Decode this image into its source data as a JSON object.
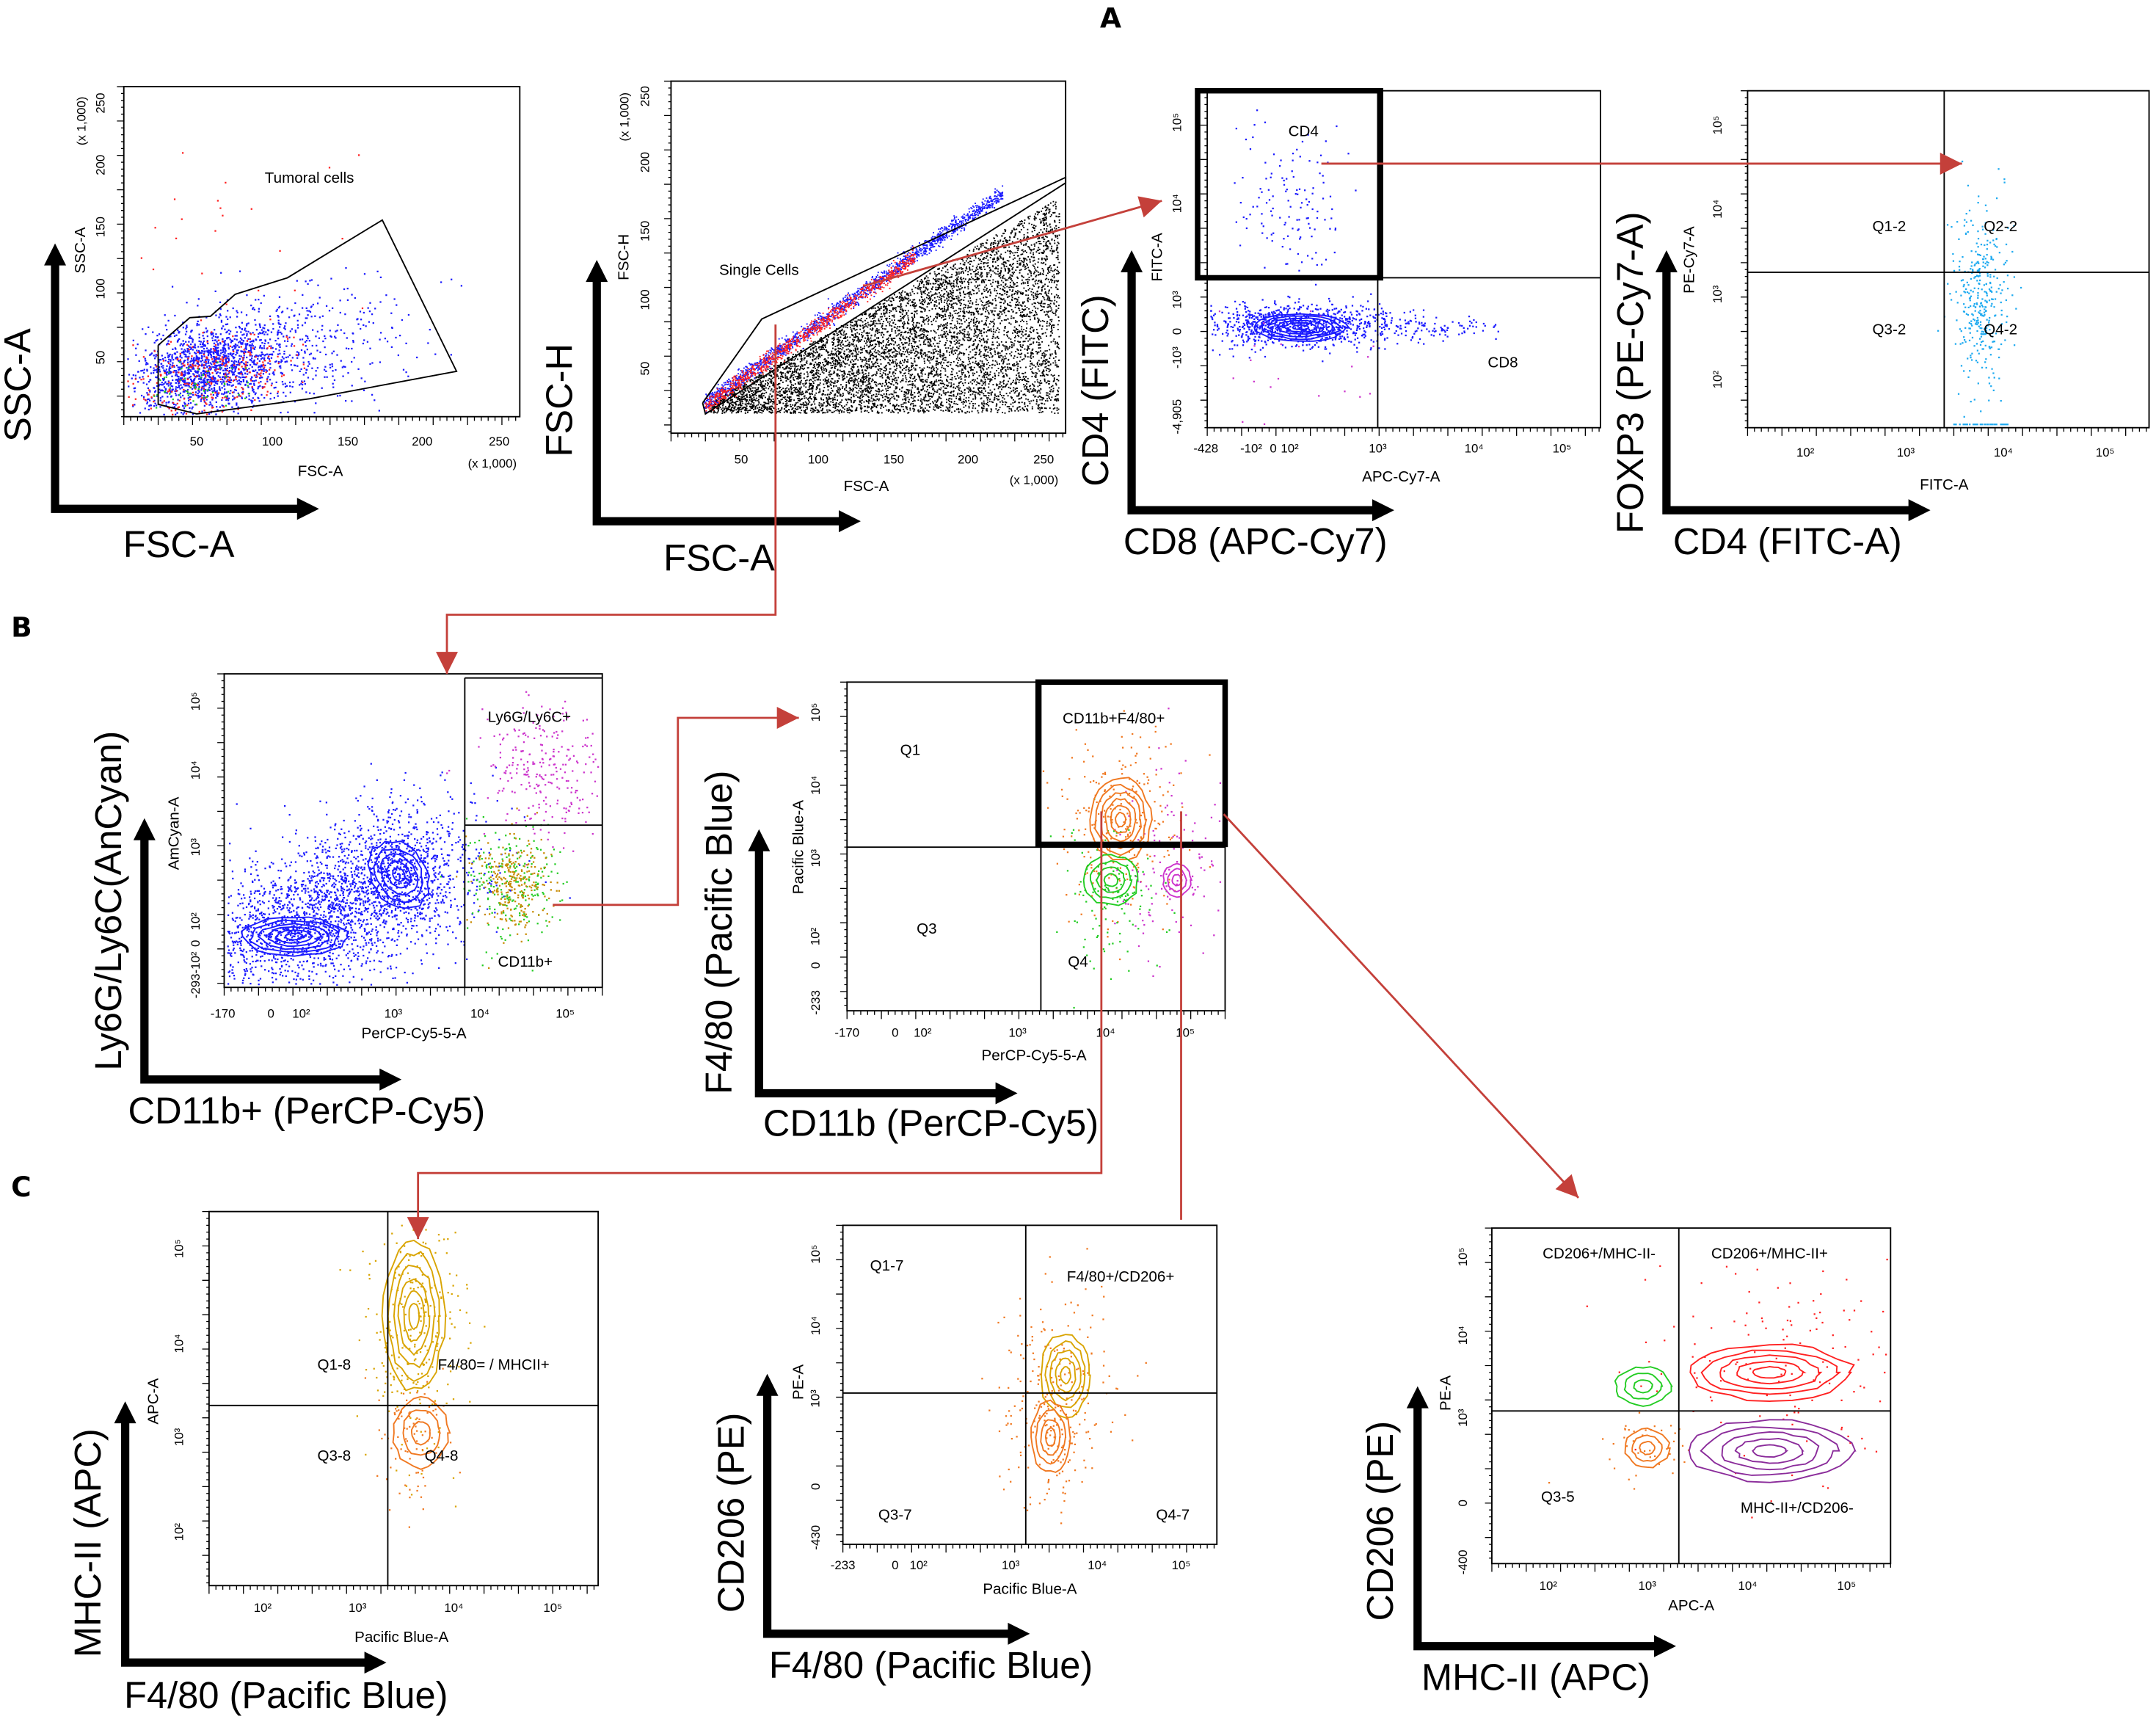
{
  "panels": {
    "a": "A",
    "b": "B",
    "c": "C"
  },
  "colors": {
    "connector": "#c4403a",
    "blue": "#1a1aff",
    "red": "#ff2020",
    "green": "#22cc22",
    "magenta": "#cc33cc",
    "cyan": "#1eaaf0",
    "orange": "#f07820",
    "gold": "#d9a400",
    "purple": "#8a2b9a",
    "black": "#000000"
  },
  "plots": [
    {
      "id": "tumoral-cells",
      "axis_x": "FSC-A",
      "axis_y": "SSC-A",
      "param_x": "FSC-A",
      "param_y": "SSC-A",
      "mult_x": "(x 1,000)",
      "mult_y": "(x 1,000)",
      "x_ticks": [
        "50",
        "100",
        "150",
        "200",
        "250"
      ],
      "y_ticks": [
        "50",
        "100",
        "150",
        "200",
        "250"
      ],
      "populations": [
        "Tumoral cells"
      ]
    },
    {
      "id": "single-cells",
      "axis_x": "FSC-A",
      "axis_y": "FSC-H",
      "param_x": "FSC-A",
      "param_y": "FSC-H",
      "mult_x": "(x 1,000)",
      "mult_y": "(x 1,000)",
      "x_ticks": [
        "50",
        "100",
        "150",
        "200",
        "250"
      ],
      "y_ticks": [
        "50",
        "100",
        "150",
        "200",
        "250"
      ],
      "populations": [
        "Single Cells"
      ]
    },
    {
      "id": "cd4-cd8",
      "axis_x": "CD8 (APC-Cy7)",
      "axis_y": "CD4 (FITC)",
      "param_x": "APC-Cy7-A",
      "param_y": "FITC-A",
      "x_ticks": [
        "-428",
        "-10²",
        "0",
        "10²",
        "10³",
        "10⁴",
        "10⁵"
      ],
      "y_ticks": [
        "10⁵",
        "10⁴",
        "10³",
        "0",
        "-10³",
        "-4,905"
      ],
      "populations": [
        "CD4",
        "CD8"
      ]
    },
    {
      "id": "cd4-foxp3",
      "axis_x": "CD4 (FITC-A)",
      "axis_y": "FOXP3 (PE-Cy7-A)",
      "param_x": "FITC-A",
      "param_y": "PE-Cy7-A",
      "x_ticks": [
        "10²",
        "10³",
        "10⁴",
        "10⁵"
      ],
      "y_ticks": [
        "10⁵",
        "10⁴",
        "10³",
        "10²"
      ],
      "populations": [
        "Q1-2",
        "Q2-2",
        "Q3-2",
        "Q4-2"
      ]
    },
    {
      "id": "ly6g-cd11b",
      "axis_x": "CD11b+ (PerCP-Cy5)",
      "axis_y": "Ly6G/Ly6C(AnCyan)",
      "param_x": "PerCP-Cy5-5-A",
      "param_y": "AmCyan-A",
      "x_ticks": [
        "-170",
        "0",
        "10²",
        "10³",
        "10⁴",
        "10⁵"
      ],
      "y_ticks": [
        "10⁵",
        "10⁴",
        "10³",
        "10²",
        "0",
        "-10²",
        "-293"
      ],
      "populations": [
        "Ly6G/Ly6C+",
        "CD11b+"
      ]
    },
    {
      "id": "f480-cd11b",
      "axis_x": "CD11b (PerCP-Cy5)",
      "axis_y": "F4/80 (Pacific Blue)",
      "param_x": "PerCP-Cy5-5-A",
      "param_y": "Pacific Blue-A",
      "x_ticks": [
        "-170",
        "0",
        "10²",
        "10³",
        "10⁴",
        "10⁵"
      ],
      "y_ticks": [
        "10⁵",
        "10⁴",
        "10³",
        "10²",
        "0",
        "-233"
      ],
      "populations": [
        "Q1",
        "CD11b+F4/80+",
        "Q3",
        "Q4"
      ]
    },
    {
      "id": "mhcii-f480",
      "axis_x": "F4/80 (Pacific Blue)",
      "axis_y": "MHC-II (APC)",
      "param_x": "Pacific Blue-A",
      "param_y": "APC-A",
      "x_ticks": [
        "10²",
        "10³",
        "10⁴",
        "10⁵"
      ],
      "y_ticks": [
        "10⁵",
        "10⁴",
        "10³",
        "10²"
      ],
      "populations": [
        "Q1-8",
        "F4/80= / MHCII+",
        "Q3-8",
        "Q4-8"
      ]
    },
    {
      "id": "cd206-f480",
      "axis_x": "F4/80 (Pacific Blue)",
      "axis_y": "CD206 (PE)",
      "param_x": "Pacific Blue-A",
      "param_y": "PE-A",
      "x_ticks": [
        "-233",
        "0",
        "10²",
        "10³",
        "10⁴",
        "10⁵"
      ],
      "y_ticks": [
        "10⁵",
        "10⁴",
        "10³",
        "0",
        "-430"
      ],
      "populations": [
        "Q1-7",
        "F4/80+/CD206+",
        "Q3-7",
        "Q4-7"
      ]
    },
    {
      "id": "cd206-mhcii",
      "axis_x": "MHC-II (APC)",
      "axis_y": "CD206 (PE)",
      "param_x": "APC-A",
      "param_y": "PE-A",
      "x_ticks": [
        "10²",
        "10³",
        "10⁴",
        "10⁵"
      ],
      "y_ticks": [
        "10⁵",
        "10⁴",
        "10³",
        "0",
        "-400"
      ],
      "populations": [
        "CD206+/MHC-II-",
        "CD206+/MHC-II+",
        "Q3-5",
        "MHC-II+/CD206-"
      ]
    }
  ]
}
